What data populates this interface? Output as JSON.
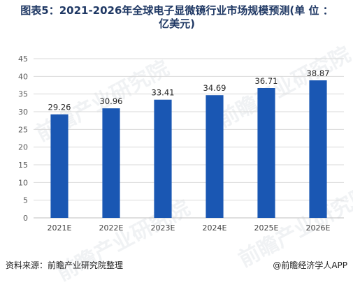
{
  "title_line1": "图表5：2021-2026年全球电子显微镜行业市场规模预测(单 位 ：",
  "title_line2": "亿美元)",
  "source": "资料来源：前瞻产业研究院整理",
  "credit": "@前瞻经济学人APP",
  "watermark": "前瞻产业研究院",
  "chart_data": {
    "type": "bar",
    "categories": [
      "2021E",
      "2022E",
      "2023E",
      "2024E",
      "2025E",
      "2026E"
    ],
    "values": [
      29.26,
      30.96,
      33.41,
      34.69,
      36.71,
      38.87
    ],
    "ylim": [
      0,
      45
    ],
    "yticks": [
      0,
      5,
      10,
      15,
      20,
      25,
      30,
      35,
      40,
      45
    ],
    "grid": true,
    "bar_color": "#1a57b3"
  }
}
